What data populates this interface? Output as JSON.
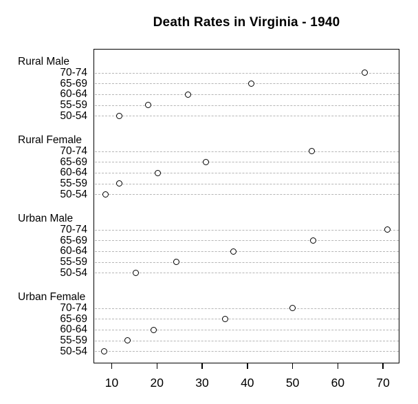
{
  "chart_data": {
    "type": "scatter",
    "subtype": "dotchart",
    "title": "Death Rates in Virginia - 1940",
    "xlabel": "",
    "ylabel": "",
    "xlim": [
      6.0,
      73.8
    ],
    "xticks": [
      10,
      20,
      30,
      40,
      50,
      60,
      70
    ],
    "grid": "horizontal-dashed",
    "legend": "none",
    "point_marker": "open-circle",
    "groups": [
      {
        "label": "Rural Male",
        "rows": [
          {
            "age": "70-74",
            "value": 66.0
          },
          {
            "age": "65-69",
            "value": 41.0
          },
          {
            "age": "60-64",
            "value": 26.9
          },
          {
            "age": "55-59",
            "value": 18.1
          },
          {
            "age": "50-54",
            "value": 11.7
          }
        ]
      },
      {
        "label": "Rural Female",
        "rows": [
          {
            "age": "70-74",
            "value": 54.3
          },
          {
            "age": "65-69",
            "value": 30.9
          },
          {
            "age": "60-64",
            "value": 20.3
          },
          {
            "age": "55-59",
            "value": 11.7
          },
          {
            "age": "50-54",
            "value": 8.7
          }
        ]
      },
      {
        "label": "Urban Male",
        "rows": [
          {
            "age": "70-74",
            "value": 71.1
          },
          {
            "age": "65-69",
            "value": 54.6
          },
          {
            "age": "60-64",
            "value": 37.0
          },
          {
            "age": "55-59",
            "value": 24.3
          },
          {
            "age": "50-54",
            "value": 15.4
          }
        ]
      },
      {
        "label": "Urban Female",
        "rows": [
          {
            "age": "70-74",
            "value": 50.0
          },
          {
            "age": "65-69",
            "value": 35.1
          },
          {
            "age": "60-64",
            "value": 19.3
          },
          {
            "age": "55-59",
            "value": 13.6
          },
          {
            "age": "50-54",
            "value": 8.4
          }
        ]
      }
    ],
    "colors": {
      "background": "#ffffff",
      "text": "#000000",
      "gridline": "#b5b5b5",
      "point_stroke": "#000000",
      "box_border": "#000000"
    }
  }
}
